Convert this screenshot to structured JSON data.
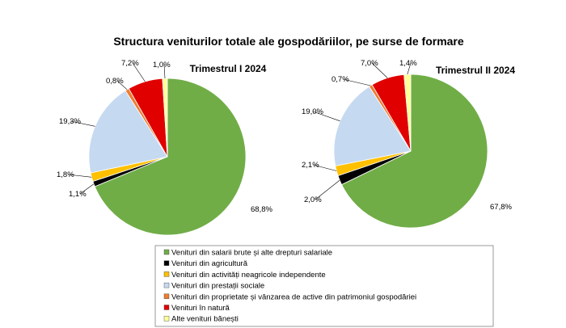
{
  "chart_title": "Structura veniturilor totale ale gospodăriilor, pe surse de formare",
  "legend": [
    {
      "name": "Venituri din salarii brute și alte drepturi salariale",
      "color": "#70ad47"
    },
    {
      "name": "Venituri din agricultură",
      "color": "#000000"
    },
    {
      "name": "Venituri din activități neagricole independente",
      "color": "#ffc000"
    },
    {
      "name": "Venituri din prestații sociale",
      "color": "#c5d9f1"
    },
    {
      "name": "Venituri din proprietate și vânzarea de active din patrimoniul gospodăriei",
      "color": "#ed7d31"
    },
    {
      "name": "Venituri în natură",
      "color": "#e00000"
    },
    {
      "name": "Alte venituri bănești",
      "color": "#ffff99"
    }
  ],
  "chart_data": [
    {
      "type": "pie",
      "title": "Trimestrul  I 2024",
      "values": [
        68.8,
        1.1,
        1.8,
        19.3,
        0.8,
        7.2,
        1.0
      ],
      "labels": [
        "68,8%",
        "1,1%",
        "1,8%",
        "19,3%",
        "0,8%",
        "7,2%",
        "1,0%"
      ]
    },
    {
      "type": "pie",
      "title": "Trimestrul  II 2024",
      "values": [
        67.8,
        2.0,
        2.1,
        19.0,
        0.7,
        7.0,
        1.4
      ],
      "labels": [
        "67,8%",
        "2,0%",
        "2,1%",
        "19,0%",
        "0,7%",
        "7,0%",
        "1,4%"
      ]
    }
  ]
}
